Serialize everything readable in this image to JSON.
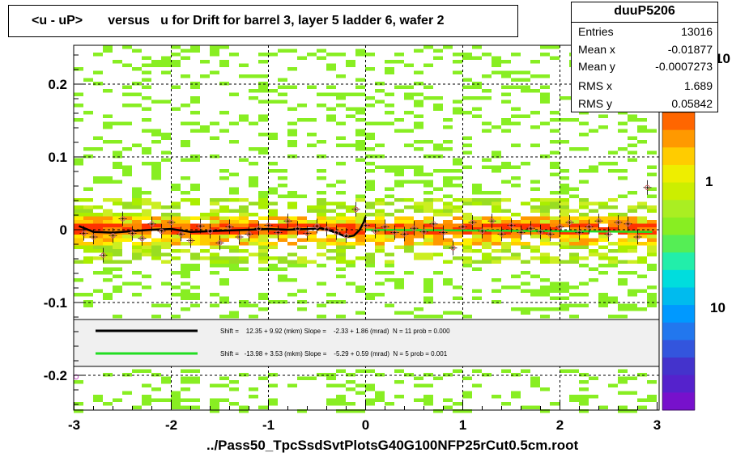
{
  "title": "<u - uP>       versus   u for Drift for barrel 3, layer 5 ladder 6, wafer 2",
  "stats": {
    "name": "duuP5206",
    "rows": [
      {
        "label": "Entries",
        "value": "13016"
      },
      {
        "label": "Mean x",
        "value": "-0.01877"
      },
      {
        "label": "Mean y",
        "value": "-0.0007273"
      },
      {
        "label": "RMS x",
        "value": "1.689"
      },
      {
        "label": "RMS y",
        "value": "0.05842"
      }
    ]
  },
  "footer": "../Pass50_TpcSsdSvtPlotsG40G100NFP25rCut0.5cm.root",
  "palette_labels": [
    "10",
    "1",
    "10"
  ],
  "colors": {
    "black_fit": "#000000",
    "green_fit": "#22dd22",
    "point_marker": "#cc6666",
    "legend_bg": "#f0f0f0"
  },
  "chart_data": {
    "type": "heatmap",
    "title": "<u - uP>       versus   u for Drift for barrel 3, layer 5 ladder 6, wafer 2",
    "xlabel": "",
    "ylabel": "",
    "xlim": [
      -3,
      3
    ],
    "ylim": [
      -0.25,
      0.25
    ],
    "x_ticks": [
      "-3",
      "-2",
      "-1",
      "0",
      "1",
      "2",
      "3"
    ],
    "y_ticks": [
      "-0.2",
      "-0.1",
      "0",
      "0.1",
      "0.2"
    ],
    "grid": true,
    "legend": [
      {
        "name": "Shift =    12.35 + 9.92 (mkm) Slope =    -2.33 + 1.86 (mrad)  N = 11 prob = 0.000",
        "color": "#000000"
      },
      {
        "name": "Shift =   -13.98 + 3.53 (mkm) Slope =    -5.29 + 0.59 (mrad)  N = 5 prob = 0.001",
        "color": "#22dd22"
      }
    ],
    "profile_points": {
      "x": [
        -2.9,
        -2.8,
        -2.7,
        -2.6,
        -2.5,
        -2.4,
        -2.3,
        -2.2,
        -2.1,
        -2.0,
        -1.9,
        -1.8,
        -1.7,
        -1.6,
        -1.5,
        -1.4,
        -1.3,
        -1.2,
        -1.1,
        -1.0,
        -0.9,
        -0.8,
        -0.7,
        -0.6,
        -0.5,
        -0.4,
        -0.3,
        -0.2,
        -0.1,
        0.0,
        0.1,
        0.2,
        0.3,
        0.4,
        0.5,
        0.6,
        0.7,
        0.8,
        0.9,
        1.0,
        1.1,
        1.2,
        1.3,
        1.4,
        1.5,
        1.6,
        1.7,
        1.8,
        1.9,
        2.0,
        2.1,
        2.2,
        2.3,
        2.4,
        2.5,
        2.6,
        2.7,
        2.8,
        2.9
      ],
      "y": [
        -0.005,
        -0.01,
        -0.035,
        -0.008,
        0.015,
        -0.005,
        -0.012,
        0.008,
        -0.002,
        0.01,
        -0.006,
        -0.015,
        0.005,
        -0.002,
        -0.018,
        0.004,
        -0.01,
        -0.006,
        0.002,
        0.006,
        -0.004,
        0.012,
        0.002,
        -0.005,
        0.005,
        0.001,
        -0.004,
        -0.008,
        0.028,
        0.006,
        -0.002,
        0.004,
        -0.004,
        -0.006,
        0.002,
        -0.003,
        0.008,
        -0.004,
        -0.025,
        0.004,
        0.01,
        -0.002,
        0.012,
        -0.006,
        0.006,
        -0.004,
        0.002,
        -0.003,
        -0.006,
        0.004,
        0.01,
        -0.004,
        0.004,
        0.012,
        -0.006,
        0.01,
        0.008,
        -0.01,
        0.058
      ]
    },
    "fit_black": {
      "x": [
        -2.95,
        -2.8,
        -2.6,
        -2.4,
        -2.2,
        -2.0,
        -1.8,
        -1.6,
        -1.4,
        -1.2,
        -1.0,
        -0.8,
        -0.6,
        -0.45,
        -0.3,
        -0.2,
        -0.12,
        -0.06,
        -0.02,
        0.0
      ],
      "y": [
        0.005,
        -0.003,
        -0.004,
        -0.002,
        0.0,
        0.001,
        -0.003,
        -0.002,
        -0.001,
        0.0,
        0.001,
        0.0,
        0.001,
        0.002,
        -0.004,
        -0.01,
        -0.008,
        0.0,
        0.01,
        0.018
      ]
    },
    "fit_green": {
      "x": [
        0.0,
        2.95
      ],
      "y": [
        0.0,
        -0.003
      ]
    }
  }
}
